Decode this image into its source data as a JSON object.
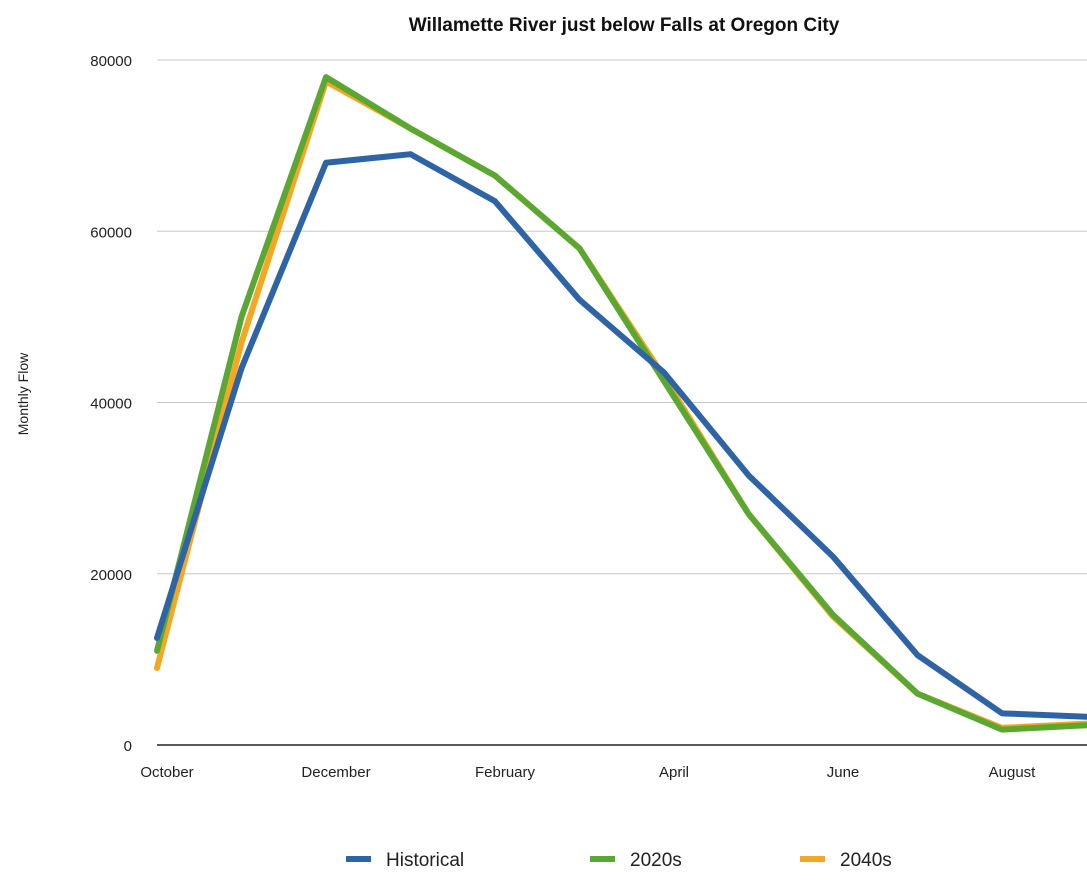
{
  "chart_data": {
    "type": "line",
    "title": "Willamette River just below Falls at Oregon City",
    "xlabel": "",
    "ylabel": "Monthly Flow",
    "x": [
      "October",
      "November",
      "December",
      "January",
      "February",
      "March",
      "April",
      "May",
      "June",
      "July",
      "August",
      "September"
    ],
    "x_tick_labels": [
      "October",
      "",
      "December",
      "",
      "February",
      "",
      "April",
      "",
      "June",
      "",
      "August",
      ""
    ],
    "ylim": [
      0,
      80000
    ],
    "yticks": [
      0,
      20000,
      40000,
      60000,
      80000
    ],
    "y_tick_labels": [
      "0",
      "20000",
      "40000",
      "60000",
      "80000"
    ],
    "grid": "horizontal",
    "legend_position": "bottom",
    "series": [
      {
        "name": "2040s",
        "color": "#f5a623",
        "values": [
          9000,
          47000,
          77500,
          72000,
          66500,
          58000,
          43000,
          27000,
          15000,
          6000,
          2000,
          2500
        ]
      },
      {
        "name": "2020s",
        "color": "#5aa832",
        "values": [
          11000,
          50000,
          78000,
          72000,
          66500,
          58000,
          42500,
          27000,
          15200,
          6000,
          1800,
          2300
        ]
      },
      {
        "name": "Historical",
        "color": "#2e64a6",
        "values": [
          12500,
          44000,
          68000,
          69000,
          63500,
          52000,
          43500,
          31500,
          22000,
          10500,
          3700,
          3300
        ]
      }
    ],
    "legend": [
      {
        "name": "Historical",
        "color": "#2e64a6"
      },
      {
        "name": "2020s",
        "color": "#5aa832"
      },
      {
        "name": "2040s",
        "color": "#f5a623"
      }
    ]
  }
}
